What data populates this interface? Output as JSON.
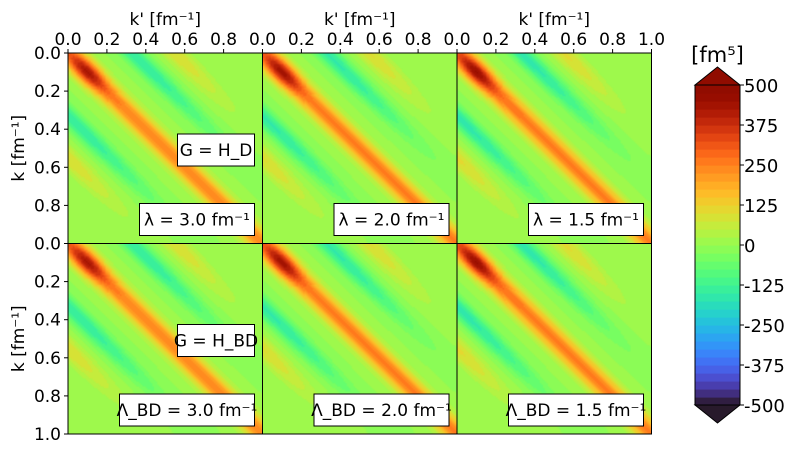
{
  "chart_data": {
    "type": "heatmap",
    "layout": {
      "rows": 2,
      "cols": 3
    },
    "x_axis": {
      "label": "k' [fm⁻¹]",
      "position": "top",
      "range": [
        0.0,
        1.0
      ],
      "ticks": [
        "0.0",
        "0.2",
        "0.4",
        "0.6",
        "0.8",
        "0.0",
        "0.2",
        "0.4",
        "0.6",
        "0.8",
        "0.0",
        "0.2",
        "0.4",
        "0.6",
        "0.8",
        "1.0"
      ]
    },
    "y_axis": {
      "label": "k [fm⁻¹]",
      "range": [
        0.0,
        1.0
      ],
      "inverted": true,
      "ticks_top_row": [
        "0.0",
        "0.2",
        "0.4",
        "0.6",
        "0.8"
      ],
      "ticks_bottom_row": [
        "0.0",
        "0.2",
        "0.4",
        "0.6",
        "0.8",
        "1.0"
      ]
    },
    "colorbar": {
      "title": "[fm⁵]",
      "range": [
        -500,
        500
      ],
      "levels": 40,
      "extend": "both",
      "colormap": "turbo",
      "ticks": [
        {
          "value": 500,
          "label": "500"
        },
        {
          "value": 375,
          "label": "375"
        },
        {
          "value": 250,
          "label": "250"
        },
        {
          "value": 125,
          "label": "125"
        },
        {
          "value": 0,
          "label": "0"
        },
        {
          "value": -125,
          "label": "-125"
        },
        {
          "value": -250,
          "label": "-250"
        },
        {
          "value": -375,
          "label": "-375"
        },
        {
          "value": -500,
          "label": "-500"
        }
      ]
    },
    "panels": [
      {
        "row": 0,
        "col": 0,
        "lambda": 3.0,
        "label": "λ = 3.0 fm⁻¹",
        "generator": "G = H_D"
      },
      {
        "row": 0,
        "col": 1,
        "lambda": 2.0,
        "label": "λ = 2.0 fm⁻¹"
      },
      {
        "row": 0,
        "col": 2,
        "lambda": 1.5,
        "label": "λ = 1.5 fm⁻¹"
      },
      {
        "row": 1,
        "col": 0,
        "lambda": 3.0,
        "label": "Λ_BD = 3.0 fm⁻¹",
        "generator": "G = H_BD"
      },
      {
        "row": 1,
        "col": 1,
        "lambda": 2.0,
        "label": "Λ_BD = 2.0 fm⁻¹"
      },
      {
        "row": 1,
        "col": 2,
        "lambda": 1.5,
        "label": "Λ_BD = 1.5 fm⁻¹"
      }
    ]
  }
}
